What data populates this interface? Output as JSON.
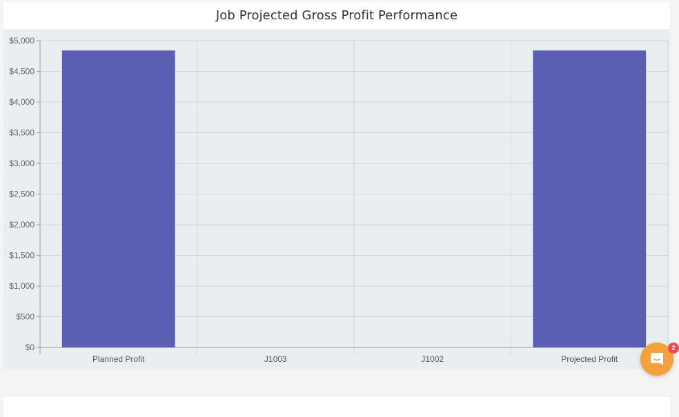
{
  "header": {
    "title": "Job Projected Gross Profit Performance"
  },
  "chart_data": {
    "type": "bar",
    "title": "Job Projected Gross Profit Performance",
    "categories": [
      "Planned Profit",
      "J1003",
      "J1002",
      "Projected Profit"
    ],
    "series": [
      {
        "values": [
          4840,
          0,
          0,
          4840
        ],
        "color": "#5b5fb3"
      }
    ],
    "ylim": [
      0,
      5000
    ],
    "yticks": [
      "$0",
      "$500",
      "$1,000",
      "$1,500",
      "$2,000",
      "$2,500",
      "$3,000",
      "$3,500",
      "$4,000",
      "$4,500",
      "$5,000"
    ],
    "grid": true,
    "xlabel": "",
    "ylabel": ""
  },
  "chat_widget": {
    "icon": "chat-bubble-icon",
    "badge_count": "2",
    "color": "#f5a03a"
  }
}
